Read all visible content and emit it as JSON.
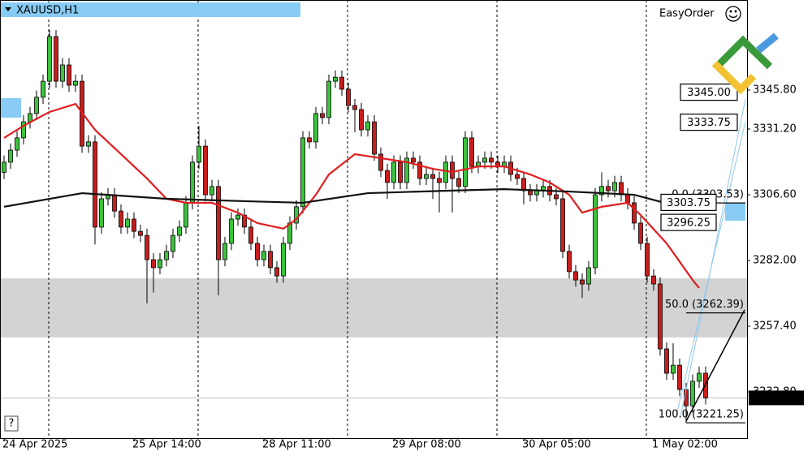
{
  "chart_data": {
    "type": "candlestick",
    "symbol": "XAUUSD,H1",
    "plugin": "EasyOrder",
    "help": "?",
    "up_color": "#3cc23c",
    "down_color": "#c81e1e",
    "ylim": [
      3215.5,
      3379.5
    ],
    "yticks": [
      {
        "value": 3345.8,
        "label": "3345.80"
      },
      {
        "value": 3331.2,
        "label": "3331.20"
      },
      {
        "value": 3306.6,
        "label": "3306.60"
      },
      {
        "value": 3282,
        "label": "3282.00"
      },
      {
        "value": 3257.4,
        "label": "3257.40"
      },
      {
        "value": 3232.8,
        "label": "3232.80"
      }
    ],
    "categories": [
      "24 Apr 2025",
      null,
      null,
      null,
      null,
      null,
      null,
      null,
      null,
      null,
      null,
      null,
      null,
      null,
      null,
      null,
      null,
      null,
      null,
      null,
      "25 Apr 14:00",
      null,
      null,
      null,
      null,
      null,
      null,
      null,
      null,
      null,
      null,
      null,
      null,
      null,
      null,
      null,
      null,
      null,
      null,
      null,
      "28 Apr 11:00",
      null,
      null,
      null,
      null,
      null,
      null,
      null,
      null,
      null,
      null,
      null,
      null,
      null,
      null,
      null,
      null,
      null,
      null,
      null,
      "29 Apr 08:00",
      null,
      null,
      null,
      null,
      null,
      null,
      null,
      null,
      null,
      null,
      null,
      null,
      null,
      null,
      null,
      null,
      null,
      null,
      null,
      "30 Apr 05:00",
      null,
      null,
      null,
      null,
      null,
      null,
      null,
      null,
      null,
      null,
      null,
      null,
      null,
      null,
      null,
      null,
      null,
      null,
      null,
      "1 May 02:00",
      null,
      null,
      null,
      null,
      null,
      null,
      null,
      null
    ],
    "open": [
      3315.0,
      3318.8,
      3323.3,
      3327.9,
      3333.9,
      3337.0,
      3343.1,
      3349.1,
      3365.8,
      3349.1,
      3355.2,
      3347.6,
      3349.1,
      3324.8,
      3326.4,
      3294.5,
      3305.1,
      3306.6,
      3300.5,
      3294.5,
      3297.5,
      3292.9,
      3291.4,
      3282.3,
      3279.3,
      3282.3,
      3285.4,
      3291.4,
      3294.5,
      3303.6,
      3318.8,
      3324.8,
      3306.6,
      3309.7,
      3282.3,
      3288.4,
      3297.5,
      3299.0,
      3294.5,
      3288.4,
      3282.3,
      3285.4,
      3279.3,
      3276.2,
      3288.4,
      3296.0,
      3302.1,
      3327.9,
      3326.4,
      3337.0,
      3335.5,
      3349.1,
      3350.6,
      3346.1,
      3340.0,
      3338.5,
      3330.9,
      3333.9,
      3321.8,
      3315.7,
      3311.2,
      3318.8,
      3311.2,
      3320.3,
      3318.8,
      3312.7,
      3314.2,
      3312.7,
      3311.2,
      3318.8,
      3312.7,
      3309.7,
      3327.9,
      3317.2,
      3318.8,
      3320.3,
      3318.8,
      3317.2,
      3318.8,
      3314.2,
      3312.7,
      3308.1,
      3306.6,
      3308.1,
      3309.7,
      3306.6,
      3305.1,
      3285.4,
      3277.8,
      3274.7,
      3273.2,
      3279.3,
      3306.6,
      3309.7,
      3308.1,
      3311.2,
      3306.6,
      3303.6,
      3296.0,
      3288.4,
      3276.2,
      3273.2,
      3248.9,
      3239.8,
      3242.8,
      3233.7,
      3227.6,
      3236.8,
      3239.8
    ],
    "high": [
      3321.3,
      3325.8,
      3330.4,
      3336.4,
      3339.5,
      3345.6,
      3351.6,
      3368.3,
      3368.3,
      3357.7,
      3357.7,
      3351.6,
      3351.6,
      3328.9,
      3328.9,
      3307.6,
      3309.1,
      3309.1,
      3303.0,
      3300.0,
      3300.0,
      3295.4,
      3293.9,
      3284.8,
      3284.8,
      3287.9,
      3293.9,
      3297.0,
      3306.1,
      3321.3,
      3332.4,
      3327.3,
      3312.2,
      3312.2,
      3290.9,
      3300.0,
      3301.5,
      3301.5,
      3297.0,
      3290.9,
      3287.9,
      3287.9,
      3281.8,
      3290.9,
      3298.5,
      3304.6,
      3330.4,
      3330.4,
      3339.5,
      3339.5,
      3351.6,
      3353.1,
      3353.1,
      3348.6,
      3342.5,
      3341.0,
      3336.4,
      3336.4,
      3324.3,
      3318.2,
      3321.3,
      3321.3,
      3322.8,
      3322.8,
      3321.3,
      3316.7,
      3316.7,
      3315.2,
      3321.3,
      3321.3,
      3315.2,
      3330.4,
      3330.4,
      3321.3,
      3322.8,
      3322.8,
      3321.3,
      3321.3,
      3321.3,
      3316.7,
      3315.2,
      3310.6,
      3310.6,
      3312.2,
      3312.2,
      3309.1,
      3307.6,
      3287.9,
      3280.3,
      3277.2,
      3281.8,
      3309.1,
      3315.0,
      3312.2,
      3313.7,
      3313.7,
      3309.1,
      3306.1,
      3298.5,
      3290.9,
      3278.7,
      3275.7,
      3251.4,
      3251.0,
      3245.3,
      3236.2,
      3239.3,
      3242.3,
      3242.3
    ],
    "low": [
      3312.5,
      3316.3,
      3320.8,
      3325.4,
      3331.4,
      3334.5,
      3340.6,
      3346.6,
      3346.6,
      3346.6,
      3345.1,
      3345.1,
      3322.3,
      3322.3,
      3288.0,
      3292.0,
      3302.6,
      3298.0,
      3292.0,
      3292.0,
      3290.4,
      3288.9,
      3266.0,
      3270.0,
      3276.8,
      3279.8,
      3282.9,
      3288.9,
      3292.0,
      3301.1,
      3316.3,
      3304.1,
      3304.1,
      3269.0,
      3279.8,
      3285.9,
      3295.0,
      3292.0,
      3285.9,
      3279.8,
      3279.8,
      3276.8,
      3273.7,
      3273.7,
      3285.9,
      3293.5,
      3299.6,
      3323.9,
      3323.9,
      3333.0,
      3333.0,
      3346.6,
      3343.6,
      3337.5,
      3330.0,
      3328.4,
      3328.4,
      3319.3,
      3313.2,
      3305.0,
      3308.7,
      3308.7,
      3308.7,
      3316.3,
      3310.2,
      3310.2,
      3305.0,
      3300.0,
      3308.7,
      3300.0,
      3307.2,
      3307.2,
      3314.7,
      3314.7,
      3316.3,
      3316.3,
      3314.7,
      3314.7,
      3311.7,
      3310.2,
      3303.0,
      3304.1,
      3304.1,
      3305.6,
      3304.1,
      3302.6,
      3282.9,
      3275.3,
      3272.2,
      3268.0,
      3270.7,
      3276.8,
      3304.1,
      3305.6,
      3305.6,
      3304.1,
      3301.1,
      3293.5,
      3285.9,
      3273.7,
      3270.7,
      3246.4,
      3237.3,
      3237.3,
      3231.2,
      3221.25,
      3225.1,
      3234.3,
      3228.1
    ],
    "close": [
      3318.8,
      3323.3,
      3327.9,
      3333.9,
      3337.0,
      3343.1,
      3349.1,
      3365.8,
      3349.1,
      3355.2,
      3347.6,
      3349.1,
      3324.8,
      3326.4,
      3294.5,
      3305.1,
      3306.6,
      3300.5,
      3294.5,
      3297.5,
      3292.9,
      3291.4,
      3282.3,
      3279.3,
      3282.3,
      3285.4,
      3291.4,
      3294.5,
      3303.6,
      3318.8,
      3324.8,
      3306.6,
      3309.7,
      3282.3,
      3288.4,
      3297.5,
      3299.0,
      3294.5,
      3288.4,
      3282.3,
      3285.4,
      3279.3,
      3276.2,
      3288.4,
      3296.0,
      3302.1,
      3327.9,
      3326.4,
      3337.0,
      3335.5,
      3349.1,
      3350.6,
      3346.1,
      3340.0,
      3338.5,
      3330.9,
      3333.9,
      3321.8,
      3315.7,
      3311.2,
      3318.8,
      3311.2,
      3320.3,
      3318.8,
      3312.7,
      3314.2,
      3312.7,
      3311.2,
      3318.8,
      3312.7,
      3309.7,
      3327.9,
      3317.2,
      3318.8,
      3320.3,
      3318.8,
      3317.2,
      3318.8,
      3314.2,
      3312.7,
      3308.1,
      3306.6,
      3308.1,
      3309.7,
      3306.6,
      3305.1,
      3285.4,
      3277.8,
      3274.7,
      3273.2,
      3279.3,
      3306.6,
      3309.7,
      3308.1,
      3311.2,
      3306.6,
      3303.6,
      3296.0,
      3288.4,
      3276.2,
      3273.2,
      3248.9,
      3239.8,
      3242.8,
      3233.7,
      3227.6,
      3236.8,
      3239.8,
      3230.57
    ],
    "moving_averages": [
      {
        "color": "#e01e1e",
        "x": [
          0,
          3,
          7,
          11,
          14,
          18,
          22,
          25,
          28,
          32,
          36,
          39,
          43,
          45,
          48,
          50,
          54,
          58,
          62,
          66,
          69,
          73,
          77,
          81,
          84,
          87,
          89,
          92,
          96,
          98,
          102,
          106,
          107
        ],
        "values": [
          3327.9,
          3332.4,
          3337.6,
          3340.6,
          3330.9,
          3321.8,
          3312.7,
          3305.1,
          3303.6,
          3303.6,
          3299.9,
          3296.0,
          3293.9,
          3297.5,
          3306.6,
          3314.2,
          3321.8,
          3320.3,
          3318.8,
          3316.3,
          3315.1,
          3317.2,
          3317.2,
          3314.2,
          3311.2,
          3306.6,
          3299.9,
          3302.1,
          3303.6,
          3299.0,
          3288.4,
          3274.7,
          3271.7
        ]
      },
      {
        "color": "#111111",
        "x": [
          0,
          12,
          25,
          37,
          46,
          56,
          68,
          77,
          87,
          97,
          104,
          108
        ],
        "values": [
          3302.1,
          3307.2,
          3305.1,
          3304.2,
          3303.6,
          3307.2,
          3308.1,
          3308.7,
          3307.8,
          3306.6,
          3302.1,
          3301.1
        ]
      }
    ],
    "zone": [
      3253.2,
      3275.3
    ],
    "fibonacci": [
      {
        "label": "0.0 (3303.53)",
        "price": 3303.53
      },
      {
        "label": "50.0 (3262.39)",
        "price": 3262.39
      },
      {
        "label": "100.0 (3221.25)",
        "price": 3221.25
      }
    ],
    "order_levels": [
      {
        "value": 3345,
        "label": "3345.00"
      },
      {
        "value": 3333.75,
        "label": "3333.75"
      },
      {
        "value": 3303.75,
        "label": "3303.75"
      },
      {
        "value": 3296.25,
        "label": "3296.25"
      }
    ],
    "current_price": 3230.57
  }
}
